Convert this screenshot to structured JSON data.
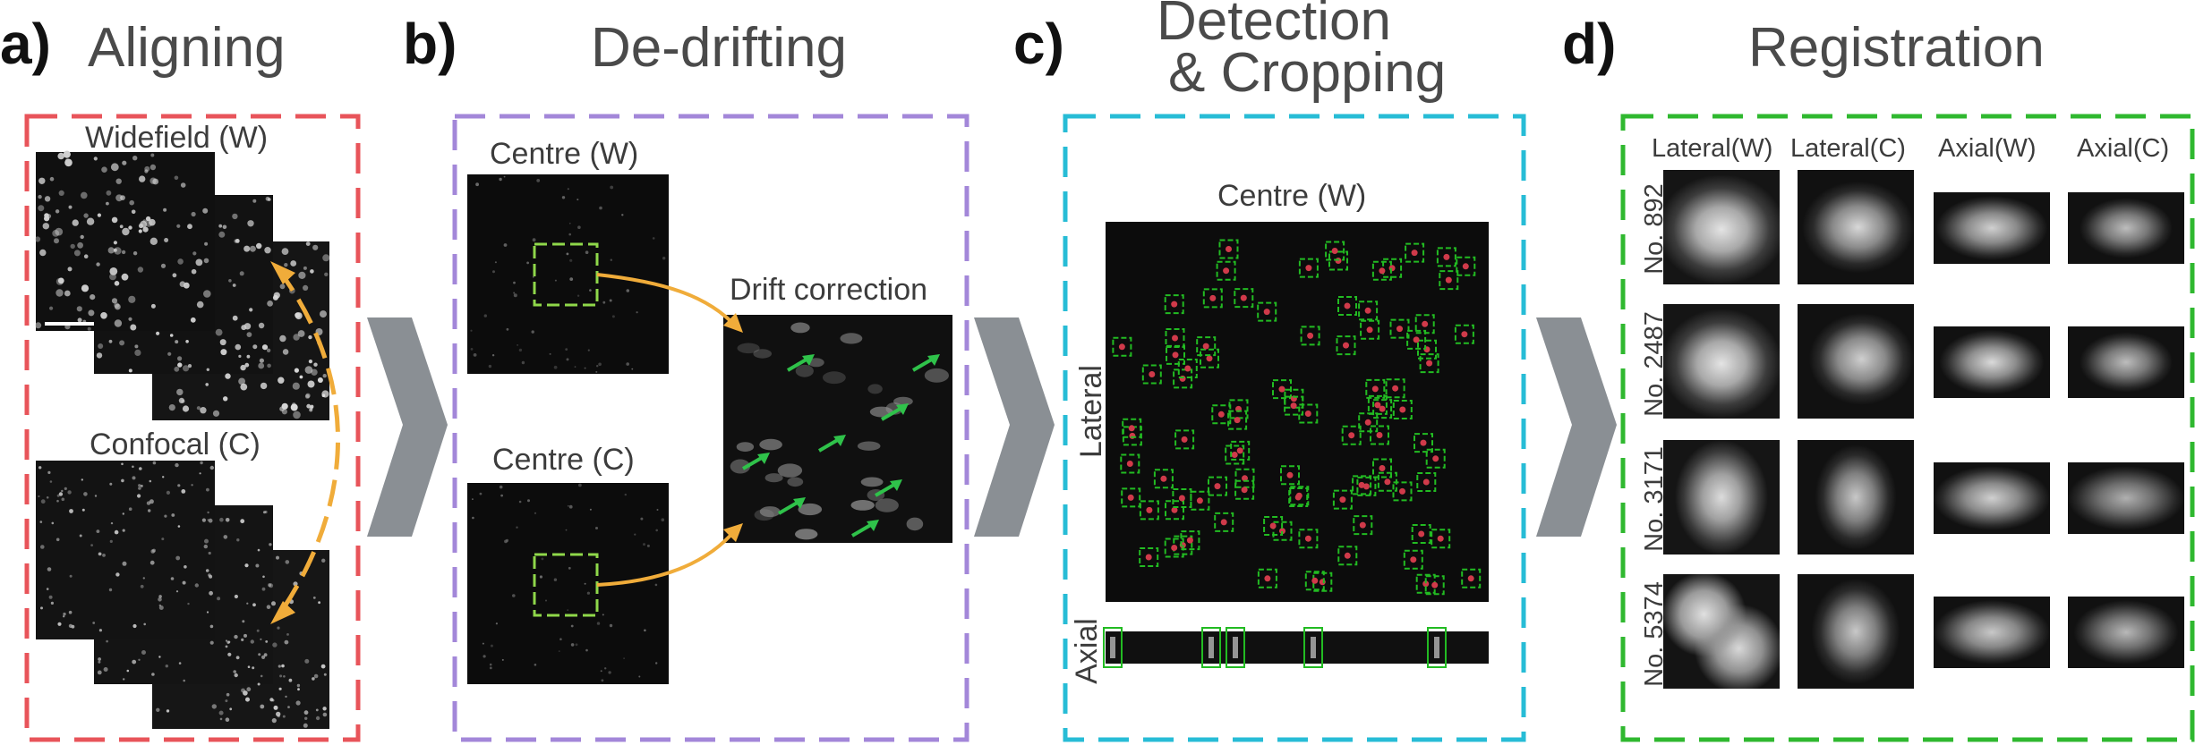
{
  "panels": {
    "a": {
      "letter": "a)",
      "title": "Aligning",
      "widefield": "Widefield (W)",
      "confocal": "Confocal (C)"
    },
    "b": {
      "letter": "b)",
      "title": "De-drifting",
      "centre_w": "Centre (W)",
      "centre_c": "Centre (C)",
      "drift": "Drift correction"
    },
    "c": {
      "letter": "c)",
      "title_line1": "Detection",
      "title_line2": "& Cropping",
      "centre_w": "Centre (W)",
      "lateral": "Lateral",
      "axial": "Axial"
    },
    "d": {
      "letter": "d)",
      "title": "Registration",
      "columns": [
        "Lateral(W)",
        "Lateral(C)",
        "Axial(W)",
        "Axial(C)"
      ],
      "rows": [
        "No. 892",
        "No. 2487",
        "No. 3171",
        "No. 5374"
      ]
    }
  },
  "colors": {
    "panel_a_border": "#e8545a",
    "panel_b_border": "#a387d9",
    "panel_c_border": "#27bcd6",
    "panel_d_border": "#2fb82f",
    "arrow_orange": "#f0ac3a",
    "arrow_green": "#2fc24a",
    "chevron": "#8a8f94",
    "crop_box": "#8fd84a",
    "detection_box": "#22bb22",
    "detection_dot": "#d03a4a"
  }
}
